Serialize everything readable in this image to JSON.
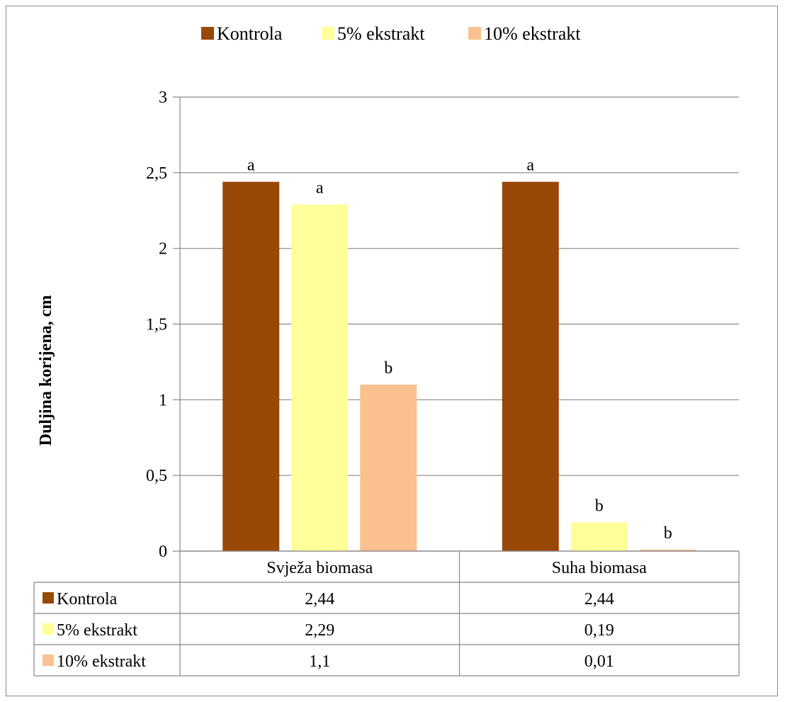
{
  "chart_data": {
    "type": "bar",
    "categories": [
      "Svježa biomasa",
      "Suha biomasa"
    ],
    "series": [
      {
        "name": "Kontrola",
        "values": [
          2.44,
          2.44
        ],
        "value_labels": [
          "2,44",
          "2,44"
        ],
        "letters": [
          "a",
          "a"
        ],
        "color": "#984807"
      },
      {
        "name": "5% ekstrakt",
        "values": [
          2.29,
          0.19
        ],
        "value_labels": [
          "2,29",
          "0,19"
        ],
        "letters": [
          "a",
          "b"
        ],
        "color": "#FFFF99"
      },
      {
        "name": "10% ekstrakt",
        "values": [
          1.1,
          0.01
        ],
        "value_labels": [
          "1,1",
          "0,01"
        ],
        "letters": [
          "b",
          "b"
        ],
        "color": "#FAC090"
      }
    ],
    "ylabel": "Duljina korijena, cm",
    "ylim": [
      0,
      3
    ],
    "yticks": [
      0,
      0.5,
      1,
      1.5,
      2,
      2.5,
      3
    ],
    "ytick_labels": [
      "0",
      "0,5",
      "1",
      "1,5",
      "2",
      "2,5",
      "3"
    ],
    "legend_position": "top",
    "grid": true,
    "data_table": true
  }
}
